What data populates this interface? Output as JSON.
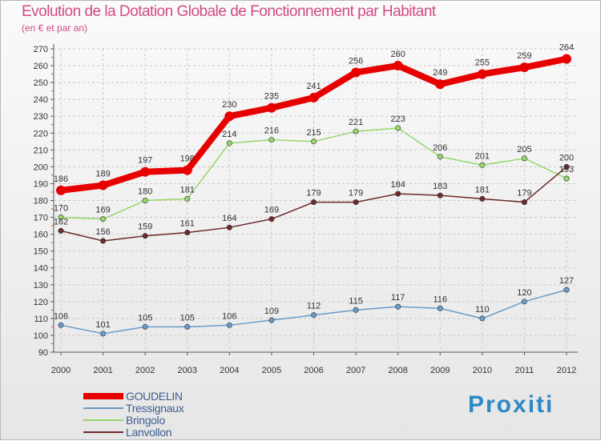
{
  "chart_data": {
    "type": "line",
    "title": "Evolution de la Dotation Globale de Fonctionnement par Habitant",
    "subtitle": "(en € et par an)",
    "x": [
      "2000",
      "2001",
      "2002",
      "2003",
      "2004",
      "2005",
      "2006",
      "2007",
      "2008",
      "2009",
      "2010",
      "2011",
      "2012"
    ],
    "yticks": [
      90,
      100,
      110,
      120,
      130,
      140,
      150,
      160,
      170,
      180,
      190,
      200,
      210,
      220,
      230,
      240,
      250,
      260,
      270
    ],
    "ylim": [
      90,
      270
    ],
    "series": [
      {
        "name": "GOUDELIN",
        "color": "#e60000",
        "values": [
          186,
          189,
          197,
          198,
          230,
          235,
          241,
          256,
          260,
          249,
          255,
          259,
          264
        ]
      },
      {
        "name": "Tressignaux",
        "color": "#6a9bc6",
        "values": [
          106,
          101,
          105,
          105,
          106,
          109,
          112,
          115,
          117,
          116,
          110,
          120,
          127
        ]
      },
      {
        "name": "Bringolo",
        "color": "#96d66b",
        "values": [
          170,
          169,
          180,
          181,
          214,
          216,
          215,
          221,
          223,
          206,
          201,
          205,
          193
        ]
      },
      {
        "name": "Lanvollon",
        "color": "#6e2a2a",
        "values": [
          162,
          156,
          159,
          161,
          164,
          169,
          179,
          179,
          184,
          183,
          181,
          179,
          200
        ]
      }
    ]
  },
  "legend": {
    "items": [
      {
        "label": "GOUDELIN",
        "color": "#e60000"
      },
      {
        "label": "Tressignaux",
        "color": "#6a9bc6"
      },
      {
        "label": "Bringolo",
        "color": "#96d66b"
      },
      {
        "label": "Lanvollon",
        "color": "#6e2a2a"
      }
    ]
  },
  "logo": {
    "text": "Proxiti"
  }
}
